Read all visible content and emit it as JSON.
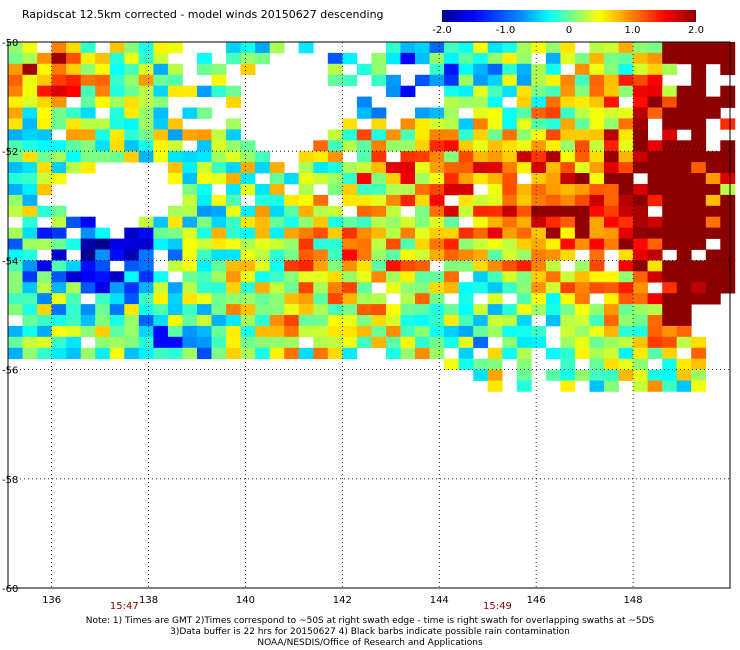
{
  "title": "Rapidscat 12.5km corrected - model winds 20150627 descending",
  "colorbar": {
    "ticks": [
      "-2.0",
      "-1.0",
      "0",
      "1.0",
      "2.0"
    ],
    "range": [
      -2.0,
      2.0
    ]
  },
  "chart_data": {
    "type": "heatmap",
    "title": "Rapidscat 12.5km corrected - model winds 20150627 descending",
    "x_ticks": [
      "136",
      "138",
      "140",
      "142",
      "144",
      "146",
      "148"
    ],
    "y_ticks": [
      "-50",
      "-52",
      "-54",
      "-56",
      "-58",
      "-60"
    ],
    "xlim": [
      135.1,
      150.0
    ],
    "ylim": [
      -60,
      -50
    ],
    "value_range": [
      -2.0,
      2.0
    ],
    "colormap": [
      "#00008b",
      "#0000ff",
      "#0080ff",
      "#00ffff",
      "#80ff80",
      "#ffff00",
      "#ff8000",
      "#ff0000",
      "#8b0000"
    ],
    "time_labels": [
      {
        "label": "15:47",
        "lon": 137.5
      },
      {
        "label": "15:49",
        "lon": 145.2
      }
    ],
    "grid": true,
    "cell_size_deg": [
      0.3,
      0.2
    ]
  },
  "notes": [
    "Note: 1) Times are GMT 2)Times correspond to ~50S at right swath edge - time is right swath for overlapping swaths at ~5DS",
    "3)Data buffer is 22 hrs for 20150627 4) Black barbs indicate possible rain contamination",
    "NOAA/NESDIS/Office of Research and Applications"
  ]
}
